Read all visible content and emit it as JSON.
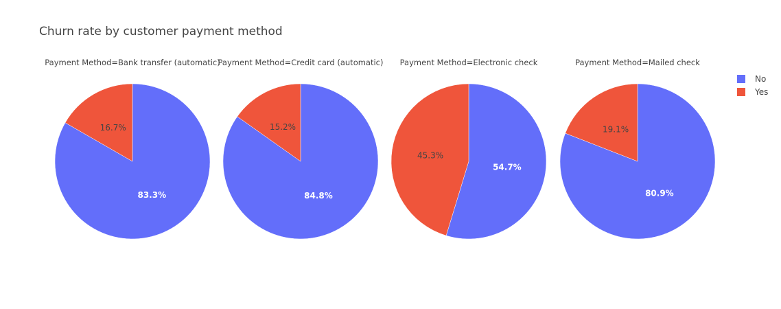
{
  "chart_data": {
    "type": "pie",
    "title": "Churn rate by customer payment method",
    "legend": {
      "placement": "top-right",
      "entries": [
        {
          "label": "No",
          "color": "#636efa"
        },
        {
          "label": "Yes",
          "color": "#ef553b"
        }
      ]
    },
    "pies": [
      {
        "title": "Payment Method=Bank transfer (automatic)",
        "slices": [
          {
            "label": "No",
            "value": 83.3,
            "text": "83.3%",
            "color": "#636efa"
          },
          {
            "label": "Yes",
            "value": 16.7,
            "text": "16.7%",
            "color": "#ef553b"
          }
        ]
      },
      {
        "title": "Payment Method=Credit card (automatic)",
        "slices": [
          {
            "label": "No",
            "value": 84.8,
            "text": "84.8%",
            "color": "#636efa"
          },
          {
            "label": "Yes",
            "value": 15.2,
            "text": "15.2%",
            "color": "#ef553b"
          }
        ]
      },
      {
        "title": "Payment Method=Electronic check",
        "slices": [
          {
            "label": "No",
            "value": 54.7,
            "text": "54.7%",
            "color": "#636efa"
          },
          {
            "label": "Yes",
            "value": 45.3,
            "text": "45.3%",
            "color": "#ef553b"
          }
        ]
      },
      {
        "title": "Payment Method=Mailed check",
        "slices": [
          {
            "label": "No",
            "value": 80.9,
            "text": "80.9%",
            "color": "#636efa"
          },
          {
            "label": "Yes",
            "value": 19.1,
            "text": "19.1%",
            "color": "#ef553b"
          }
        ]
      }
    ]
  }
}
